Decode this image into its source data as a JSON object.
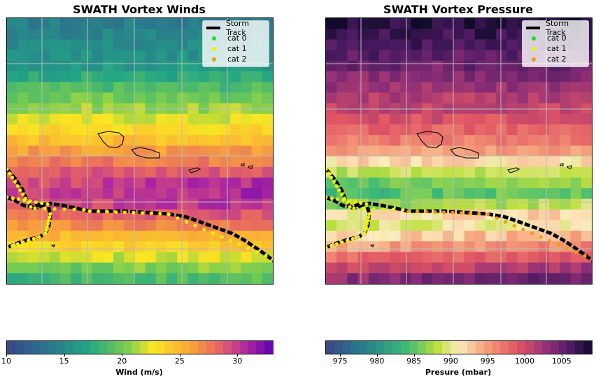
{
  "panels": [
    {
      "title": "SWATH Vortex Winds",
      "colorbar": {
        "label": "Wind (m/s)",
        "ticks": [
          "10",
          "15",
          "20",
          "25",
          "30"
        ],
        "tick_values": [
          10,
          15,
          20,
          25,
          30
        ],
        "range": [
          10,
          33
        ],
        "cmap": "plasma_like"
      }
    },
    {
      "title": "SWATH Vortex Pressure",
      "colorbar": {
        "label": "Presure (mbar)",
        "ticks": [
          "975",
          "980",
          "985",
          "990",
          "995",
          "1000",
          "1005"
        ],
        "tick_values": [
          975,
          980,
          985,
          990,
          995,
          1000,
          1005
        ],
        "range": [
          973,
          1009
        ],
        "cmap": "magma_like"
      }
    }
  ],
  "legend": {
    "items": [
      {
        "label": "Storm Track",
        "kind": "line",
        "color": "#000000"
      },
      {
        "label": "cat 0",
        "kind": "dot",
        "color": "#22dd22"
      },
      {
        "label": "cat 1",
        "kind": "dot",
        "color": "#f0f000"
      },
      {
        "label": "cat 2",
        "kind": "dot",
        "color": "#f0a000"
      }
    ]
  },
  "chart_data": [
    {
      "type": "heatmap",
      "title": "SWATH Vortex Winds",
      "colorbar_label": "Wind (m/s)",
      "value_range": [
        10,
        33
      ],
      "grid": true,
      "legend_position": "top-right",
      "legend": [
        "Storm Track",
        "cat 0",
        "cat 1",
        "cat 2"
      ]
    },
    {
      "type": "heatmap",
      "title": "SWATH Vortex Pressure",
      "colorbar_label": "Presure (mbar)",
      "value_range": [
        973,
        1009
      ],
      "grid": true,
      "legend_position": "top-right",
      "legend": [
        "Storm Track",
        "cat 0",
        "cat 1",
        "cat 2"
      ]
    }
  ]
}
